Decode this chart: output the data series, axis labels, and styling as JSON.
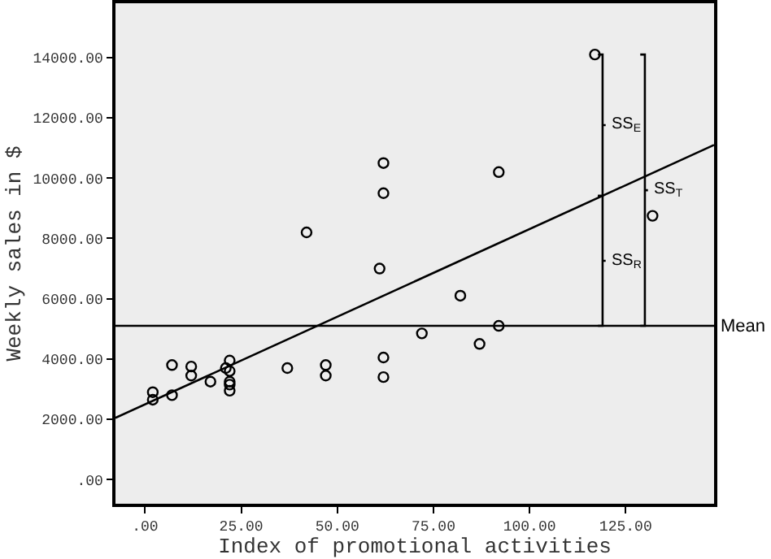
{
  "chart_data": {
    "type": "scatter",
    "xlabel": "Index of promotional activities",
    "ylabel": "Weekly sales in $",
    "xlim": [
      -7.7,
      148
    ],
    "ylim": [
      -800,
      15800
    ],
    "xticks": [
      {
        "value": 0,
        "label": ".00"
      },
      {
        "value": 25,
        "label": "25.00"
      },
      {
        "value": 50,
        "label": "50.00"
      },
      {
        "value": 75,
        "label": "75.00"
      },
      {
        "value": 100,
        "label": "100.00"
      },
      {
        "value": 125,
        "label": "125.00"
      }
    ],
    "yticks": [
      {
        "value": 0,
        "label": ".00"
      },
      {
        "value": 2000,
        "label": "2000.00"
      },
      {
        "value": 4000,
        "label": "4000.00"
      },
      {
        "value": 6000,
        "label": "6000.00"
      },
      {
        "value": 8000,
        "label": "8000.00"
      },
      {
        "value": 10000,
        "label": "10000.00"
      },
      {
        "value": 12000,
        "label": "12000.00"
      },
      {
        "value": 14000,
        "label": "14000.00"
      }
    ],
    "grid": false,
    "series": [
      {
        "marker": "circle",
        "color": "#000000",
        "x": [
          2,
          2,
          7,
          7,
          12,
          12,
          17,
          21,
          22,
          22,
          22,
          22,
          22,
          37,
          42,
          47,
          47,
          61,
          62,
          62,
          62,
          62,
          72,
          82,
          87,
          92,
          92,
          117,
          132
        ],
        "values": [
          2900,
          2650,
          3800,
          2800,
          3750,
          3450,
          3250,
          3700,
          3950,
          3600,
          3250,
          3150,
          2950,
          3700,
          8200,
          3800,
          3450,
          7000,
          10500,
          9500,
          4050,
          3400,
          4850,
          6100,
          4500,
          5100,
          10200,
          14100,
          8750
        ]
      },
      {
        "type": "line",
        "marker": "none",
        "line_style": "solid",
        "color": "#000000",
        "x": [
          -7.7,
          148
        ],
        "values": [
          2050,
          11100
        ]
      }
    ],
    "ref_lines": [
      {
        "axis": "y",
        "value": 5100,
        "label": "Mean",
        "color": "#000000"
      }
    ],
    "annotations": [
      "SS$_{E}$",
      "SS$_{T}$",
      "SS$_{R}$"
    ]
  }
}
